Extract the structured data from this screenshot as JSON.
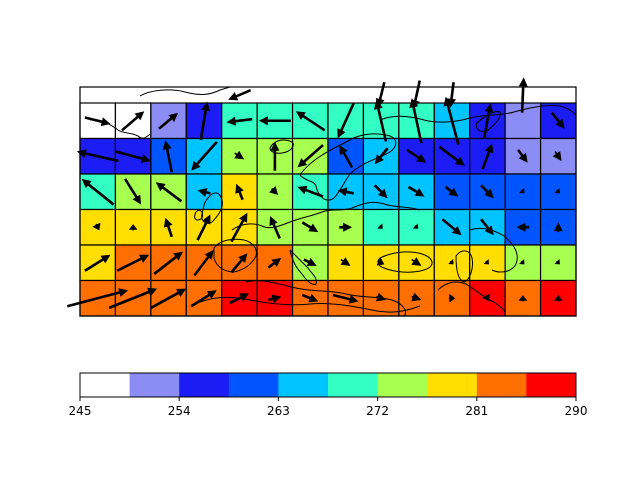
{
  "chart_data": {
    "type": "heatmap",
    "title": "",
    "xlabel": "",
    "ylabel": "",
    "colorbar": {
      "levels": [
        245,
        249.5,
        254,
        258.5,
        263,
        267.5,
        272,
        276.5,
        281,
        285.5,
        290
      ],
      "tick_values": [
        245,
        254,
        263,
        272,
        281,
        290
      ],
      "tick_labels": [
        "245",
        "254",
        "263",
        "272",
        "281",
        "290"
      ],
      "colors": [
        "#ffffff",
        "#8c8cf5",
        "#1c1cf5",
        "#0055ff",
        "#00c4ff",
        "#33ffc4",
        "#a7ff4f",
        "#ffde00",
        "#ff6e00",
        "#ff0000"
      ]
    },
    "grid": {
      "columns": 14,
      "rows": 6,
      "values_top_to_bottom": [
        [
          246,
          246,
          251,
          256,
          270,
          270,
          270,
          270,
          270,
          270,
          266,
          256,
          251,
          256
        ],
        [
          256,
          256,
          260,
          266,
          275,
          275,
          275,
          260,
          266,
          256,
          256,
          256,
          251,
          251
        ],
        [
          270,
          275,
          275,
          266,
          279,
          275,
          270,
          266,
          266,
          266,
          260,
          260,
          260,
          260
        ],
        [
          279,
          279,
          279,
          279,
          279,
          275,
          275,
          275,
          270,
          270,
          266,
          266,
          260,
          260
        ],
        [
          279,
          283,
          283,
          283,
          283,
          283,
          275,
          279,
          279,
          279,
          279,
          279,
          275,
          275
        ],
        [
          283,
          283,
          283,
          283,
          288,
          288,
          283,
          283,
          283,
          283,
          283,
          288,
          283,
          288
        ]
      ]
    },
    "top_partial_row_value": 246,
    "wind_vectors_top_to_bottom": [
      [
        [
          0.8,
          0.2
        ],
        [
          0.7,
          -0.6
        ],
        [
          0.6,
          -0.5
        ],
        [
          0.2,
          -1.2
        ],
        [
          -0.8,
          0.1
        ],
        [
          -1.0,
          0.0
        ],
        [
          -0.9,
          -0.6
        ],
        [
          -0.5,
          1.1
        ],
        [
          -0.3,
          -1.3
        ],
        [
          -0.3,
          -1.4
        ],
        [
          -0.4,
          -1.5
        ],
        [
          0.2,
          -1.1
        ],
        [
          0.0,
          0.0
        ],
        [
          0.4,
          0.5
        ]
      ],
      [
        [
          -1.3,
          -0.3
        ],
        [
          1.1,
          0.3
        ],
        [
          -0.2,
          -1.0
        ],
        [
          -0.8,
          0.9
        ],
        [
          0.3,
          0.2
        ],
        [
          0.0,
          -0.9
        ],
        [
          -0.8,
          0.7
        ],
        [
          -0.4,
          -0.7
        ],
        [
          -0.4,
          0.5
        ],
        [
          0.6,
          0.4
        ],
        [
          0.8,
          0.6
        ],
        [
          0.3,
          -0.8
        ],
        [
          0.3,
          0.4
        ],
        [
          0.2,
          0.3
        ]
      ],
      [
        [
          -1.0,
          -0.8
        ],
        [
          0.5,
          0.8
        ],
        [
          -0.8,
          -0.6
        ],
        [
          -0.4,
          -0.1
        ],
        [
          -0.2,
          -0.5
        ],
        [
          0.2,
          0.2
        ],
        [
          -0.8,
          -0.3
        ],
        [
          -0.5,
          -0.1
        ],
        [
          0.4,
          0.4
        ],
        [
          0.5,
          0.3
        ],
        [
          0.4,
          0.3
        ],
        [
          0.4,
          0.4
        ],
        [
          0.1,
          0.1
        ],
        [
          0.1,
          0.1
        ]
      ],
      [
        [
          0.1,
          0.2
        ],
        [
          0.0,
          -0.2
        ],
        [
          -0.2,
          -0.6
        ],
        [
          0.4,
          -0.8
        ],
        [
          0.5,
          -0.9
        ],
        [
          -0.3,
          -0.7
        ],
        [
          0.5,
          0.3
        ],
        [
          0.4,
          0.0
        ],
        [
          0.1,
          0.1
        ],
        [
          0.1,
          0.1
        ],
        [
          0.6,
          0.5
        ],
        [
          0.4,
          0.5
        ],
        [
          -0.4,
          0.0
        ],
        [
          0.0,
          -0.3
        ]
      ],
      [
        [
          0.8,
          -0.5
        ],
        [
          1.0,
          -0.5
        ],
        [
          0.9,
          -0.7
        ],
        [
          0.6,
          -0.8
        ],
        [
          0.5,
          -0.6
        ],
        [
          0.4,
          -0.3
        ],
        [
          0.4,
          0.2
        ],
        [
          0.3,
          0.2
        ],
        [
          0.2,
          0.1
        ],
        [
          0.3,
          0.2
        ],
        [
          0.1,
          0.1
        ],
        [
          0.1,
          0.1
        ],
        [
          0.1,
          0.1
        ],
        [
          0.1,
          0.1
        ]
      ],
      [
        [
          1.9,
          -0.5
        ],
        [
          1.5,
          -0.6
        ],
        [
          1.1,
          -0.6
        ],
        [
          0.8,
          -0.5
        ],
        [
          0.6,
          -0.3
        ],
        [
          0.4,
          -0.1
        ],
        [
          0.5,
          0.2
        ],
        [
          0.8,
          0.2
        ],
        [
          0.3,
          0.1
        ],
        [
          0.3,
          0.1
        ],
        [
          0.2,
          0.0
        ],
        [
          0.1,
          0.2
        ],
        [
          0.0,
          -0.2
        ],
        [
          0.0,
          -0.2
        ]
      ]
    ],
    "top_partial_row_arrows": [
      [
        0,
        0
      ],
      [
        0,
        0
      ],
      [
        0,
        0
      ],
      [
        0,
        0
      ],
      [
        -0.7,
        0.3
      ],
      [
        0,
        0
      ],
      [
        0,
        0
      ],
      [
        0,
        0
      ],
      [
        -0.2,
        0.8
      ],
      [
        -0.2,
        0.9
      ],
      [
        -0.1,
        0.8
      ],
      [
        0,
        0
      ],
      [
        0.05,
        -1.1
      ],
      [
        0,
        0
      ]
    ]
  }
}
